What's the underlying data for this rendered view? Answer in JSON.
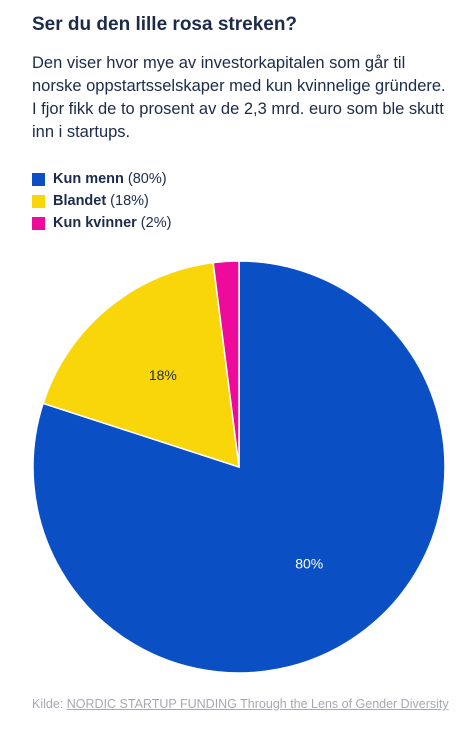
{
  "header": {
    "title": "Ser du den lille rosa streken?",
    "subtitle": "Den viser hvor mye av investorkapitalen som går til norske oppstartsselskaper med kun kvinnelige gründere. I fjor fikk de to prosent av de 2,3 mrd. euro som ble skutt inn i startups."
  },
  "legend": [
    {
      "name": "Kun menn",
      "pct_text": "(80%)",
      "color": "#0a4fc4"
    },
    {
      "name": "Blandet",
      "pct_text": "(18%)",
      "color": "#f9d60a"
    },
    {
      "name": "Kun kvinner",
      "pct_text": "(2%)",
      "color": "#ee0a9a"
    }
  ],
  "chart_data": {
    "type": "pie",
    "title": "Ser du den lille rosa streken?",
    "slices": [
      {
        "label": "Kun menn",
        "value": 80,
        "color": "#0a4fc4",
        "data_label": "80%"
      },
      {
        "label": "Blandet",
        "value": 18,
        "color": "#f9d60a",
        "data_label": "18%"
      },
      {
        "label": "Kun kvinner",
        "value": 2,
        "color": "#ee0a9a",
        "data_label": ""
      }
    ]
  },
  "source": {
    "prefix": "Kilde:",
    "link_text": "NORDIC STARTUP FUNDING Through the Lens of Gender Diversity"
  }
}
